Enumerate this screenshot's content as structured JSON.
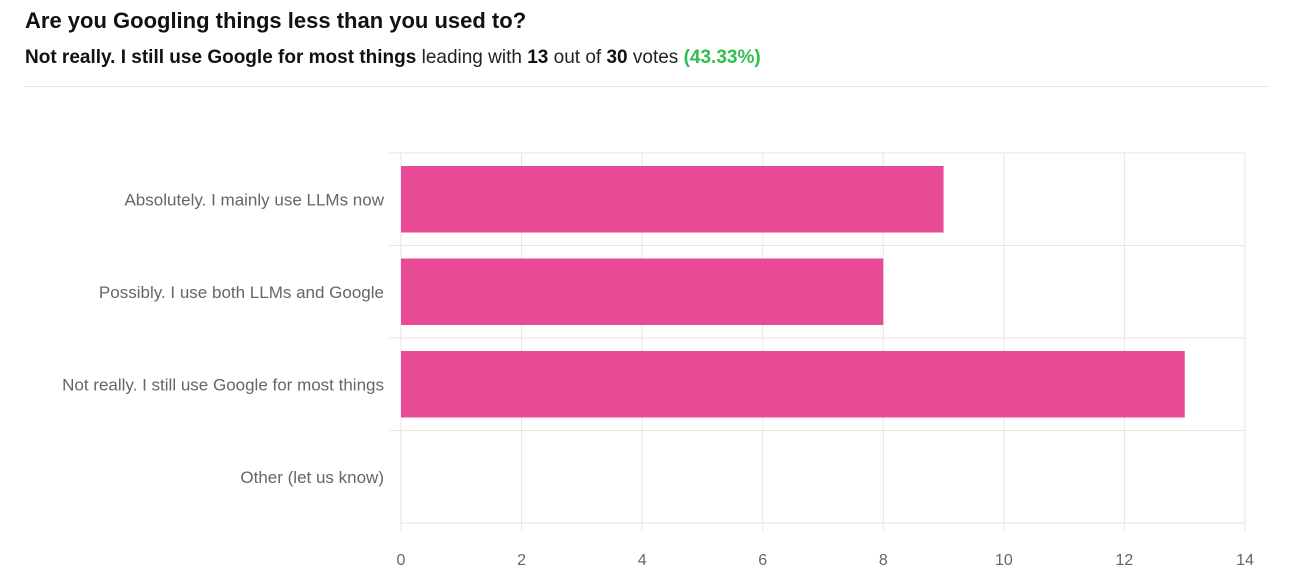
{
  "poll": {
    "title": "Are you Googling things less than you used to?",
    "leader_text": "Not really. I still use Google for most things",
    "leading_with": "leading with",
    "leader_votes": "13",
    "out_of": "out of",
    "total_votes": "30",
    "votes_word": "votes",
    "leader_percent": "(43.33%)"
  },
  "colors": {
    "bar": "#e94a96",
    "percent": "#2fbf4f",
    "grid": "#e6e6e6"
  },
  "chart_data": {
    "type": "bar",
    "orientation": "horizontal",
    "categories": [
      "Absolutely. I mainly use LLMs now",
      "Possibly. I use both LLMs and Google",
      "Not really. I still use Google for most things",
      "Other (let us know)"
    ],
    "values": [
      9,
      8,
      13,
      0
    ],
    "xlim": [
      0,
      14
    ],
    "xticks": [
      0,
      2,
      4,
      6,
      8,
      10,
      12,
      14
    ],
    "grid": true
  }
}
